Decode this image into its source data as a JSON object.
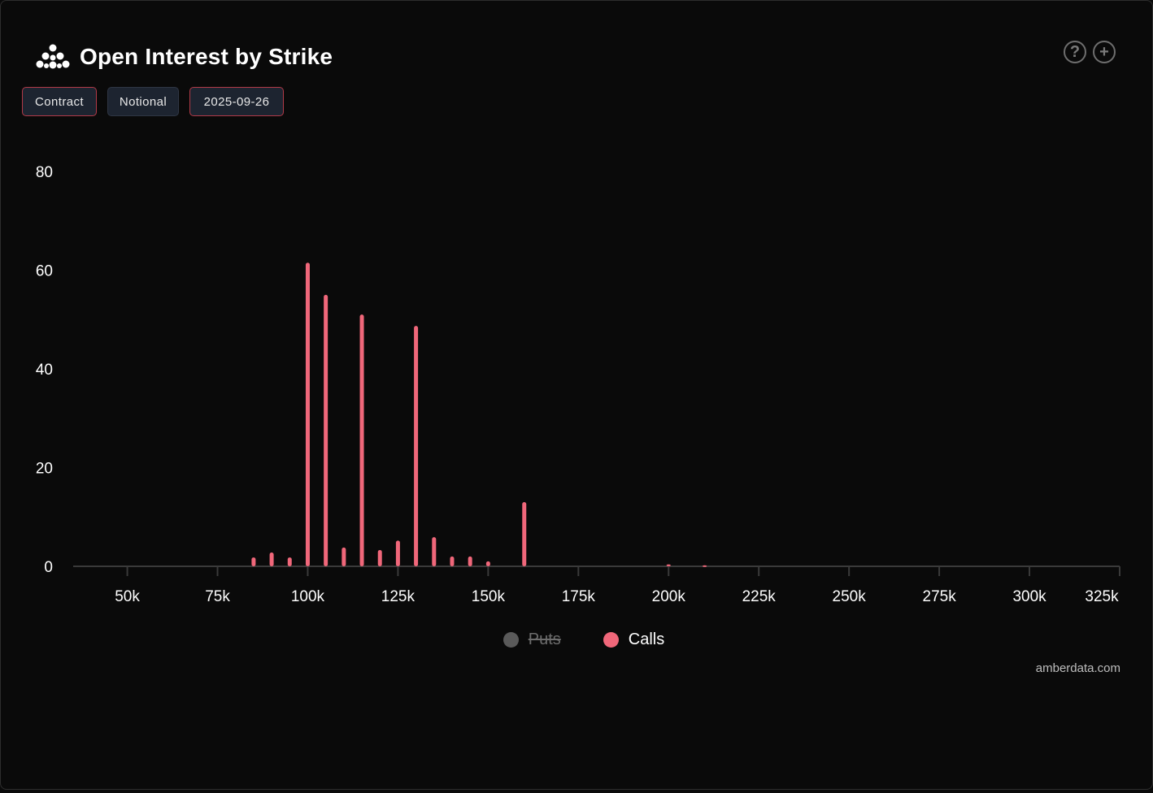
{
  "header": {
    "title": "Open Interest by Strike",
    "logo_icon": "amberdata-logo-icon"
  },
  "top_icons": [
    {
      "name": "help-icon",
      "glyph": "?"
    },
    {
      "name": "add-icon",
      "glyph": "+"
    }
  ],
  "toggles": [
    {
      "label": "Contract",
      "selected": true
    },
    {
      "label": "Notional",
      "selected": false
    },
    {
      "label": "2025-09-26",
      "selected": true
    }
  ],
  "legend": [
    {
      "label": "Puts",
      "color": "#5a5a5a",
      "hidden": true
    },
    {
      "label": "Calls",
      "color": "#f0677a",
      "hidden": false
    }
  ],
  "credit": "amberdata.com",
  "chart_data": {
    "type": "bar",
    "title": "",
    "xlabel": "",
    "ylabel": "",
    "ylim": [
      0,
      80
    ],
    "xlim": [
      35000,
      325000
    ],
    "y_ticks": [
      0,
      20,
      40,
      60,
      80
    ],
    "x_ticks": [
      50000,
      75000,
      100000,
      125000,
      150000,
      175000,
      200000,
      225000,
      250000,
      275000,
      300000,
      325000
    ],
    "x_tick_labels": [
      "50k",
      "75k",
      "100k",
      "125k",
      "150k",
      "175k",
      "200k",
      "225k",
      "250k",
      "275k",
      "300k",
      "325k"
    ],
    "grid": false,
    "legend_position": "bottom-center",
    "series": [
      {
        "name": "Puts",
        "color": "#5a5a5a",
        "hidden": true,
        "x": [],
        "values": []
      },
      {
        "name": "Calls",
        "color": "#f0677a",
        "hidden": false,
        "x": [
          85000,
          90000,
          95000,
          100000,
          105000,
          110000,
          115000,
          120000,
          125000,
          130000,
          135000,
          140000,
          145000,
          150000,
          160000,
          200000,
          210000
        ],
        "values": [
          1.8,
          2.8,
          1.8,
          61.5,
          55,
          3.8,
          51,
          3.3,
          5.2,
          48.7,
          5.9,
          2.0,
          2.0,
          1.0,
          13.0,
          0.4,
          0.2
        ]
      }
    ]
  }
}
